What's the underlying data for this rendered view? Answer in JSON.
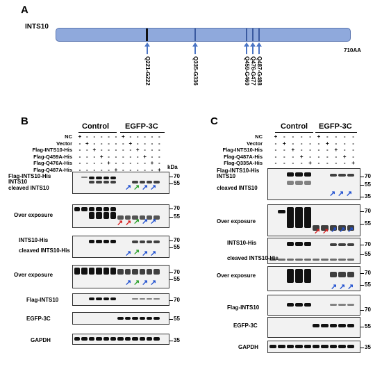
{
  "panel_a": {
    "label": "A",
    "protein": "INTS10",
    "length": "710AA",
    "sites": [
      "Q221-G222",
      "Q335-G336",
      "Q459-G460",
      "Q476-G477",
      "Q487-G488"
    ]
  },
  "panel_b": {
    "label": "B",
    "groups": [
      "Control",
      "EGFP-3C"
    ],
    "conditions": [
      "NC",
      "Vector",
      "Flag-INTS10-His",
      "Flag-Q459A-His",
      "Flag-Q476A-His",
      "Flag-Q487A-His"
    ],
    "matrix": [
      [
        "+",
        "-",
        "-",
        "-",
        "-",
        "-",
        "+",
        "-",
        "-",
        "-",
        "-",
        "-"
      ],
      [
        "-",
        "+",
        "-",
        "-",
        "-",
        "-",
        "-",
        "+",
        "-",
        "-",
        "-",
        "-"
      ],
      [
        "-",
        "-",
        "+",
        "-",
        "-",
        "-",
        "-",
        "-",
        "+",
        "-",
        "-",
        "-"
      ],
      [
        "-",
        "-",
        "-",
        "+",
        "-",
        "-",
        "-",
        "-",
        "-",
        "+",
        "-",
        "-"
      ],
      [
        "-",
        "-",
        "-",
        "-",
        "+",
        "-",
        "-",
        "-",
        "-",
        "-",
        "+",
        "-"
      ],
      [
        "-",
        "-",
        "-",
        "-",
        "-",
        "+",
        "-",
        "-",
        "-",
        "-",
        "-",
        "+"
      ]
    ],
    "kda": "kDa",
    "blots": [
      {
        "labels": [
          "Flag-INTS10-His",
          "INTS10",
          "cleaved INTS10"
        ],
        "markers": [
          "70",
          "55"
        ]
      },
      {
        "labels": [
          "Over exposure"
        ],
        "markers": [
          "70",
          "55"
        ]
      },
      {
        "labels": [
          "INTS10-His",
          "cleaved INTS10-His"
        ],
        "markers": [
          "70",
          "55"
        ]
      },
      {
        "labels": [
          "Over exposure"
        ],
        "markers": [
          "70",
          "55"
        ]
      },
      {
        "labels": [
          "Flag-INTS10"
        ],
        "markers": [
          "70"
        ]
      },
      {
        "labels": [
          "EGFP-3C"
        ],
        "markers": [
          "55"
        ]
      },
      {
        "labels": [
          "GAPDH"
        ],
        "markers": [
          "35"
        ]
      }
    ]
  },
  "panel_c": {
    "label": "C",
    "groups": [
      "Control",
      "EGFP-3C"
    ],
    "conditions": [
      "NC",
      "Vector",
      "Flag-INTS10-His",
      "Flag-Q487A-His",
      "Flag-Q335A-His"
    ],
    "matrix": [
      [
        "+",
        "-",
        "-",
        "-",
        "-",
        "+",
        "-",
        "-",
        "-",
        "-"
      ],
      [
        "-",
        "+",
        "-",
        "-",
        "-",
        "-",
        "+",
        "-",
        "-",
        "-"
      ],
      [
        "-",
        "-",
        "+",
        "-",
        "-",
        "-",
        "-",
        "+",
        "-",
        "-"
      ],
      [
        "-",
        "-",
        "-",
        "+",
        "-",
        "-",
        "-",
        "-",
        "+",
        "-"
      ],
      [
        "-",
        "-",
        "-",
        "-",
        "+",
        "-",
        "-",
        "-",
        "-",
        "+"
      ]
    ],
    "blots": [
      {
        "labels": [
          "Flag-INTS10-His",
          "INTS10",
          "cleaved INTS10"
        ],
        "markers": [
          "70",
          "55",
          "35"
        ]
      },
      {
        "labels": [
          "Over exposure"
        ],
        "markers": [
          "70",
          "55"
        ]
      },
      {
        "labels": [
          "INTS10-His",
          "cleaved INTS10-His"
        ],
        "markers": [
          "70",
          "55"
        ]
      },
      {
        "labels": [
          "Over exposure"
        ],
        "markers": [
          "70",
          "55"
        ]
      },
      {
        "labels": [
          "Flag-INTS10"
        ],
        "markers": [
          "70"
        ]
      },
      {
        "labels": [
          "EGFP-3C"
        ],
        "markers": [
          "55"
        ]
      },
      {
        "labels": [
          "GAPDH"
        ],
        "markers": [
          "35"
        ]
      }
    ]
  },
  "colors": {
    "protein_bar": "#8fa9dc",
    "protein_border": "#5b76b0",
    "arrow": "#4a74c4",
    "red_arrow": "#d82020",
    "green_arrow": "#2aa02a",
    "blue_arrow": "#2050d0"
  }
}
